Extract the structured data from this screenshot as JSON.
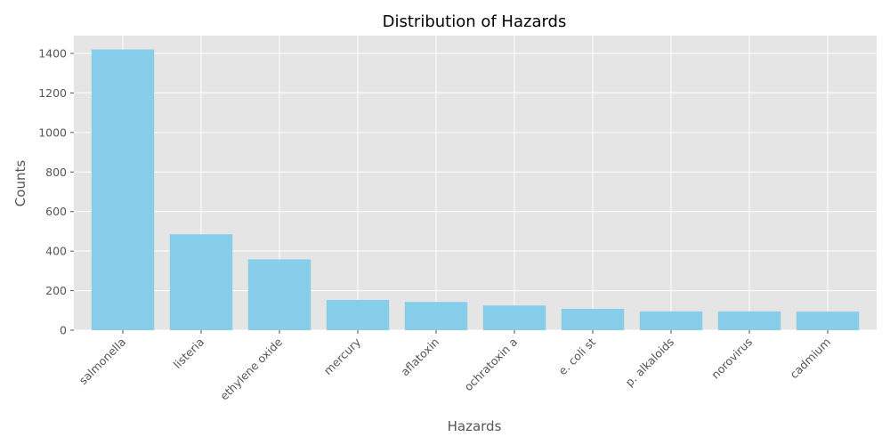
{
  "chart_data": {
    "type": "bar",
    "title": "Distribution of Hazards",
    "xlabel": "Hazards",
    "ylabel": "Counts",
    "categories": [
      "salmonella",
      "listeria",
      "ethylene oxide",
      "mercury",
      "aflatoxin",
      "ochratoxin a",
      "e. coli st",
      "p. alkaloids",
      "norovirus",
      "cadmium"
    ],
    "values": [
      1420,
      485,
      358,
      153,
      143,
      125,
      108,
      95,
      95,
      94
    ],
    "ylim": [
      0,
      1490
    ],
    "yticks": [
      0,
      200,
      400,
      600,
      800,
      1000,
      1200,
      1400
    ],
    "grid": true,
    "bar_color": "#87CEEB",
    "background_color": "#E5E5E5",
    "grid_color": "#FFFFFF"
  }
}
